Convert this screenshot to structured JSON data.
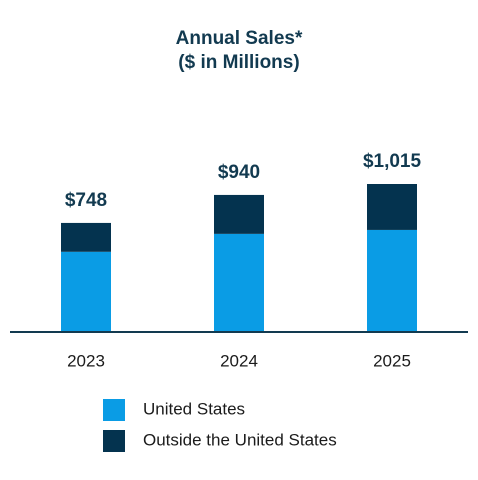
{
  "chart_data": {
    "type": "stacked_bar",
    "title": "Annual Sales*",
    "subtitle": "($ in Millions)",
    "categories": [
      "2023",
      "2024",
      "2025"
    ],
    "series": [
      {
        "name": "United States",
        "color": "#0a9ce5",
        "values": [
          550,
          673,
          700
        ]
      },
      {
        "name": "Outside the United States",
        "color": "#04334f",
        "values": [
          198,
          267,
          315
        ]
      }
    ],
    "totals": [
      748,
      940,
      1015
    ],
    "total_labels": [
      "$748",
      "$940",
      "$1,015"
    ]
  }
}
